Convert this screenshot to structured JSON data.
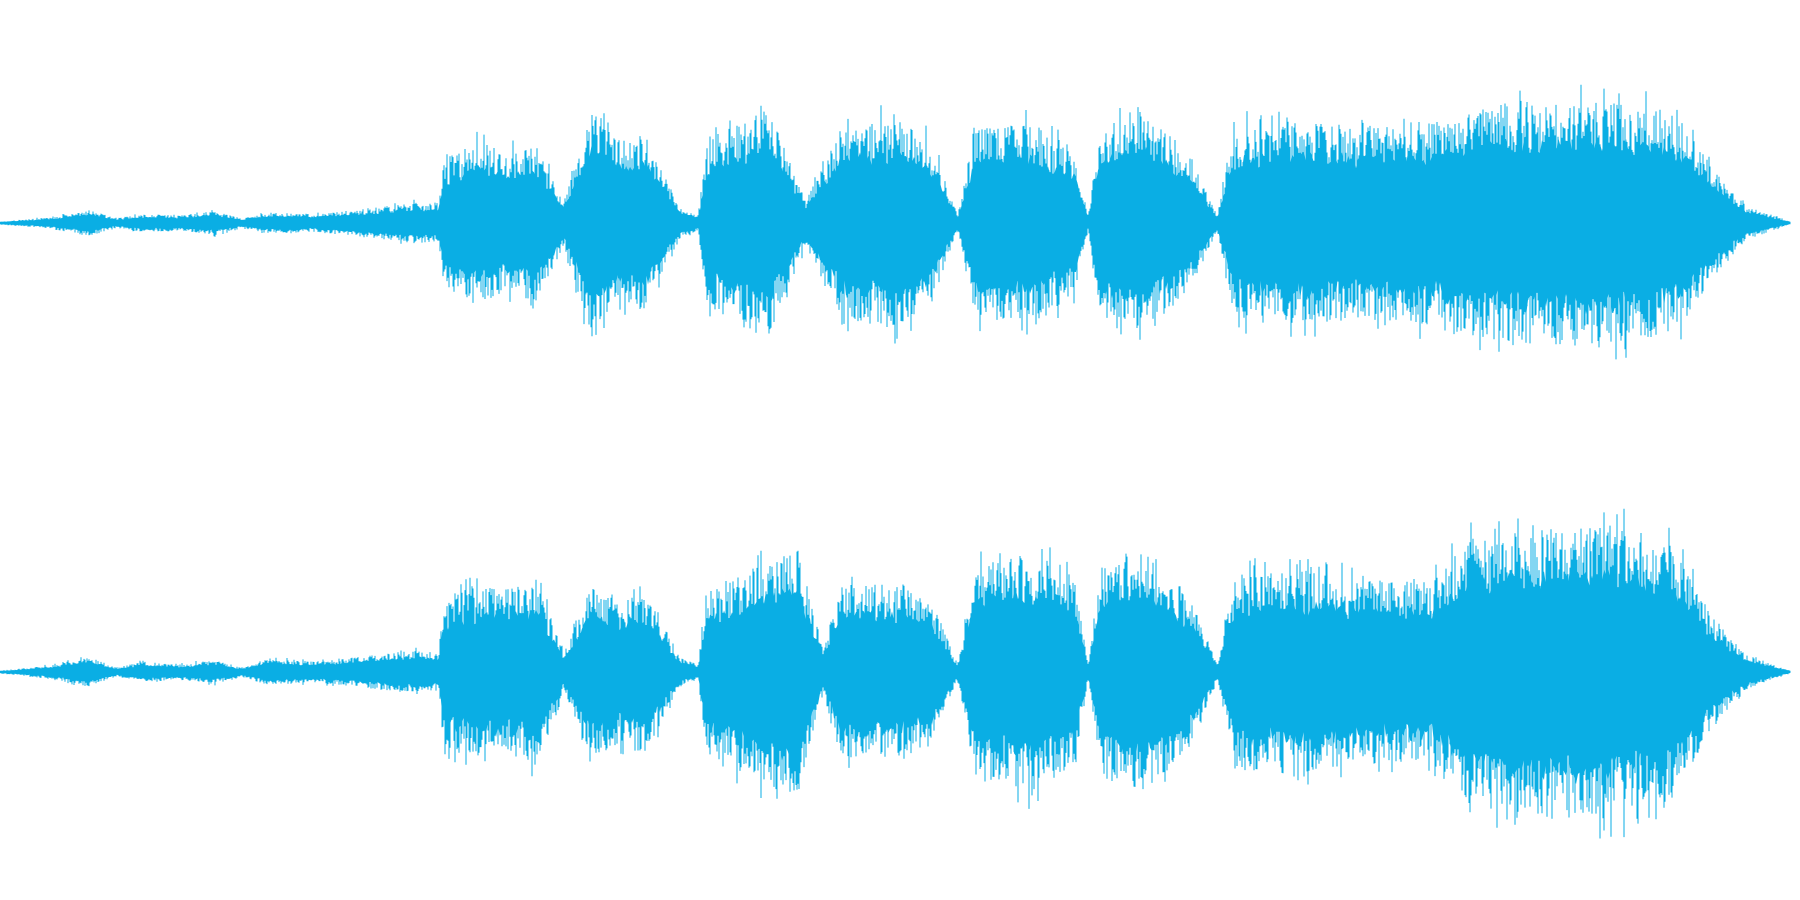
{
  "waveform": {
    "channels": [
      {
        "name": "",
        "envelope": [
          [
            0.0,
            0.01
          ],
          [
            0.01,
            0.02
          ],
          [
            0.03,
            0.04
          ],
          [
            0.05,
            0.09
          ],
          [
            0.065,
            0.03
          ],
          [
            0.08,
            0.06
          ],
          [
            0.1,
            0.05
          ],
          [
            0.12,
            0.08
          ],
          [
            0.135,
            0.03
          ],
          [
            0.15,
            0.07
          ],
          [
            0.175,
            0.06
          ],
          [
            0.2,
            0.09
          ],
          [
            0.235,
            0.14
          ],
          [
            0.245,
            0.12
          ],
          [
            0.248,
            0.42
          ],
          [
            0.265,
            0.55
          ],
          [
            0.285,
            0.48
          ],
          [
            0.3,
            0.52
          ],
          [
            0.315,
            0.15
          ],
          [
            0.33,
            0.75
          ],
          [
            0.345,
            0.55
          ],
          [
            0.36,
            0.6
          ],
          [
            0.38,
            0.1
          ],
          [
            0.39,
            0.05
          ],
          [
            0.395,
            0.55
          ],
          [
            0.41,
            0.68
          ],
          [
            0.43,
            0.75
          ],
          [
            0.45,
            0.15
          ],
          [
            0.47,
            0.65
          ],
          [
            0.5,
            0.7
          ],
          [
            0.52,
            0.55
          ],
          [
            0.535,
            0.05
          ],
          [
            0.545,
            0.65
          ],
          [
            0.58,
            0.66
          ],
          [
            0.6,
            0.48
          ],
          [
            0.608,
            0.05
          ],
          [
            0.615,
            0.65
          ],
          [
            0.64,
            0.72
          ],
          [
            0.665,
            0.45
          ],
          [
            0.68,
            0.05
          ],
          [
            0.69,
            0.65
          ],
          [
            0.72,
            0.68
          ],
          [
            0.76,
            0.65
          ],
          [
            0.8,
            0.68
          ],
          [
            0.82,
            0.75
          ],
          [
            0.86,
            0.82
          ],
          [
            0.9,
            0.8
          ],
          [
            0.935,
            0.75
          ],
          [
            0.955,
            0.4
          ],
          [
            0.975,
            0.12
          ],
          [
            0.99,
            0.05
          ],
          [
            1.0,
            0.01
          ]
        ]
      },
      {
        "name": "",
        "envelope": [
          [
            0.0,
            0.01
          ],
          [
            0.01,
            0.02
          ],
          [
            0.03,
            0.05
          ],
          [
            0.05,
            0.1
          ],
          [
            0.065,
            0.03
          ],
          [
            0.08,
            0.07
          ],
          [
            0.1,
            0.05
          ],
          [
            0.12,
            0.08
          ],
          [
            0.135,
            0.03
          ],
          [
            0.15,
            0.09
          ],
          [
            0.175,
            0.07
          ],
          [
            0.2,
            0.1
          ],
          [
            0.235,
            0.15
          ],
          [
            0.245,
            0.12
          ],
          [
            0.248,
            0.5
          ],
          [
            0.265,
            0.58
          ],
          [
            0.285,
            0.55
          ],
          [
            0.3,
            0.62
          ],
          [
            0.315,
            0.12
          ],
          [
            0.33,
            0.58
          ],
          [
            0.345,
            0.48
          ],
          [
            0.36,
            0.55
          ],
          [
            0.38,
            0.1
          ],
          [
            0.39,
            0.05
          ],
          [
            0.395,
            0.55
          ],
          [
            0.42,
            0.7
          ],
          [
            0.445,
            0.85
          ],
          [
            0.46,
            0.15
          ],
          [
            0.47,
            0.6
          ],
          [
            0.5,
            0.58
          ],
          [
            0.52,
            0.5
          ],
          [
            0.535,
            0.05
          ],
          [
            0.545,
            0.7
          ],
          [
            0.575,
            0.8
          ],
          [
            0.6,
            0.65
          ],
          [
            0.608,
            0.05
          ],
          [
            0.615,
            0.7
          ],
          [
            0.64,
            0.8
          ],
          [
            0.665,
            0.5
          ],
          [
            0.68,
            0.05
          ],
          [
            0.69,
            0.65
          ],
          [
            0.72,
            0.68
          ],
          [
            0.76,
            0.62
          ],
          [
            0.8,
            0.6
          ],
          [
            0.82,
            0.9
          ],
          [
            0.86,
            0.95
          ],
          [
            0.9,
            1.0
          ],
          [
            0.935,
            0.85
          ],
          [
            0.955,
            0.4
          ],
          [
            0.975,
            0.12
          ],
          [
            0.99,
            0.05
          ],
          [
            1.0,
            0.01
          ]
        ]
      }
    ]
  },
  "colors": {
    "background": "#ffffff",
    "waveform": "#0aaee4"
  }
}
